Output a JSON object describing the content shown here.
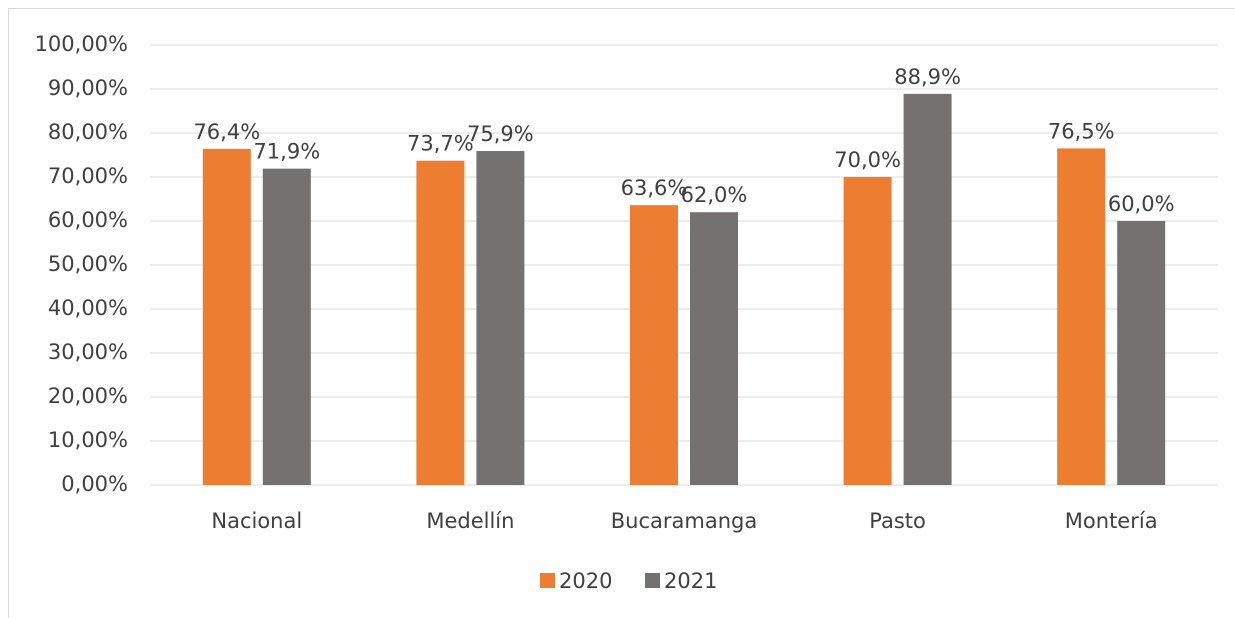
{
  "chart_data": {
    "type": "bar",
    "categories": [
      "Nacional",
      "Medellín",
      "Bucaramanga",
      "Pasto",
      "Montería"
    ],
    "series": [
      {
        "name": "2020",
        "color": "#ED7D31",
        "values": [
          76.4,
          73.7,
          63.6,
          70.0,
          76.5
        ],
        "value_labels": [
          "76,4%",
          "73,7%",
          "63,6%",
          "70,0%",
          "76,5%"
        ]
      },
      {
        "name": "2021",
        "color": "#767171",
        "values": [
          71.9,
          75.9,
          62.0,
          88.9,
          60.0
        ],
        "value_labels": [
          "71,9%",
          "75,9%",
          "62,0%",
          "88,9%",
          "60,0%"
        ]
      }
    ],
    "ylim": [
      0,
      100
    ],
    "yticks": [
      {
        "value": 0,
        "label": "0,00%"
      },
      {
        "value": 10,
        "label": "10,00%"
      },
      {
        "value": 20,
        "label": "20,00%"
      },
      {
        "value": 30,
        "label": "30,00%"
      },
      {
        "value": 40,
        "label": "40,00%"
      },
      {
        "value": 50,
        "label": "50,00%"
      },
      {
        "value": 60,
        "label": "60,00%"
      },
      {
        "value": 70,
        "label": "70,00%"
      },
      {
        "value": 80,
        "label": "80,00%"
      },
      {
        "value": 90,
        "label": "90,00%"
      },
      {
        "value": 100,
        "label": "100,00%"
      }
    ],
    "grid": true,
    "legend": "bottom"
  }
}
